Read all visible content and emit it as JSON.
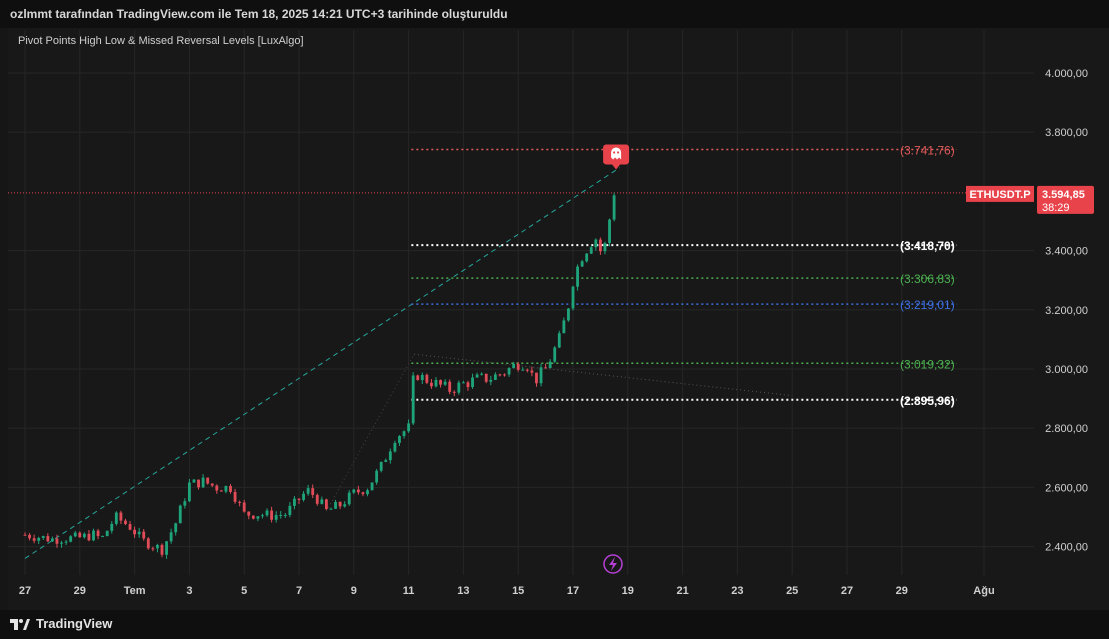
{
  "header": {
    "attribution": "ozlmmt tarafından TradingView.com ile Tem 18, 2025 14:21 UTC+3 tarihinde oluşturuldu"
  },
  "indicator": {
    "name": "Pivot Points High Low & Missed Reversal Levels [LuxAlgo]"
  },
  "footer": {
    "brand": "TradingView",
    "logo_icon": "tradingview-logo-icon"
  },
  "symbol": {
    "name": "ETHUSDT.P",
    "last_price": "3.594,85",
    "countdown": "38:29",
    "color": "#e8424a"
  },
  "colors": {
    "up": "#1fa37a",
    "down": "#e04c58",
    "background": "#181818",
    "grid": "#262626",
    "axis_text": "#d0d0d0"
  },
  "levels": [
    {
      "label": "(3.741,76)",
      "value": 3741.76,
      "color": "#e05a5a",
      "bold": false
    },
    {
      "label": "(3.418,70)",
      "value": 3418.7,
      "color": "#ffffff",
      "bold": true
    },
    {
      "label": "(3.306,83)",
      "value": 3306.83,
      "color": "#4caf50",
      "bold": false
    },
    {
      "label": "(3.219,01)",
      "value": 3219.01,
      "color": "#3d6fe0",
      "bold": false
    },
    {
      "label": "(3.019,32)",
      "value": 3019.32,
      "color": "#4caf50",
      "bold": false
    },
    {
      "label": "(2.895,96)",
      "value": 2895.96,
      "color": "#ffffff",
      "bold": true
    }
  ],
  "markers": {
    "pivot_high_icon": "ghost-icon",
    "event_icon": "lightning-icon"
  },
  "chart_data": {
    "type": "candlestick",
    "title": "",
    "interval_hours": 4,
    "y_axis": {
      "ylim": [
        2330,
        4090
      ],
      "ticks": [
        {
          "value": 4000,
          "label": "4.000,00"
        },
        {
          "value": 3800,
          "label": "3.800,00"
        },
        {
          "value": 3400,
          "label": "3.400,00"
        },
        {
          "value": 3200,
          "label": "3.200,00"
        },
        {
          "value": 3000,
          "label": "3.000,00"
        },
        {
          "value": 2800,
          "label": "2.800,00"
        },
        {
          "value": 2600,
          "label": "2.600,00"
        },
        {
          "value": 2400,
          "label": "2.400,00"
        }
      ]
    },
    "x_axis": {
      "ticks": [
        {
          "day": 0,
          "label": "27"
        },
        {
          "day": 2,
          "label": "29"
        },
        {
          "day": 4,
          "label": "Tem"
        },
        {
          "day": 6,
          "label": "3"
        },
        {
          "day": 8,
          "label": "5"
        },
        {
          "day": 10,
          "label": "7"
        },
        {
          "day": 12,
          "label": "9"
        },
        {
          "day": 14,
          "label": "11"
        },
        {
          "day": 16,
          "label": "13"
        },
        {
          "day": 18,
          "label": "15"
        },
        {
          "day": 20,
          "label": "17"
        },
        {
          "day": 22,
          "label": "19"
        },
        {
          "day": 24,
          "label": "21"
        },
        {
          "day": 26,
          "label": "23"
        },
        {
          "day": 28,
          "label": "25"
        },
        {
          "day": 30,
          "label": "27"
        },
        {
          "day": 32,
          "label": "29"
        },
        {
          "day": 35,
          "label": "Ağu"
        }
      ]
    },
    "anchors": [
      [
        0.0,
        2440
      ],
      [
        1.0,
        2425
      ],
      [
        1.5,
        2428
      ],
      [
        2.0,
        2430
      ],
      [
        2.5,
        2440
      ],
      [
        2.8,
        2425
      ],
      [
        3.3,
        2500
      ],
      [
        3.8,
        2470
      ],
      [
        4.3,
        2420
      ],
      [
        5.0,
        2390
      ],
      [
        5.5,
        2480
      ],
      [
        6.0,
        2610
      ],
      [
        6.5,
        2620
      ],
      [
        7.0,
        2600
      ],
      [
        7.5,
        2600
      ],
      [
        8.0,
        2510
      ],
      [
        8.5,
        2510
      ],
      [
        9.0,
        2505
      ],
      [
        9.5,
        2510
      ],
      [
        10.0,
        2560
      ],
      [
        10.3,
        2590
      ],
      [
        10.6,
        2570
      ],
      [
        11.0,
        2520
      ],
      [
        11.5,
        2540
      ],
      [
        12.0,
        2580
      ],
      [
        12.5,
        2600
      ],
      [
        13.0,
        2670
      ],
      [
        13.5,
        2770
      ],
      [
        14.0,
        2800
      ],
      [
        14.2,
        2990
      ],
      [
        14.5,
        2970
      ],
      [
        15.0,
        2950
      ],
      [
        15.5,
        2930
      ],
      [
        16.0,
        2950
      ],
      [
        16.5,
        2965
      ],
      [
        17.0,
        2970
      ],
      [
        17.5,
        2990
      ],
      [
        18.0,
        3020
      ],
      [
        18.3,
        3020
      ],
      [
        18.6,
        2960
      ],
      [
        19.0,
        3000
      ],
      [
        19.5,
        3100
      ],
      [
        19.8,
        3200
      ],
      [
        20.0,
        3300
      ],
      [
        20.3,
        3380
      ],
      [
        20.8,
        3450
      ],
      [
        21.0,
        3400
      ],
      [
        21.2,
        3420
      ],
      [
        21.4,
        3550
      ],
      [
        21.5,
        3600
      ],
      [
        21.6,
        3595
      ]
    ],
    "pivot_high": {
      "day": 21.5,
      "value": 3741.76
    },
    "missed_reversal_lines": [
      {
        "from": [
          0.0,
          2360
        ],
        "to": [
          21.7,
          3680
        ],
        "color": "#26a69a",
        "style": "dashed"
      },
      {
        "from": [
          14.2,
          3050
        ],
        "to": [
          28.0,
          2910
        ],
        "color": "#555555",
        "style": "dotted"
      },
      {
        "from": [
          11.0,
          2520
        ],
        "to": [
          14.2,
          3050
        ],
        "color": "#444444",
        "style": "dotted"
      }
    ],
    "level_start_day": 14.1,
    "level_end_day": 34.0
  }
}
